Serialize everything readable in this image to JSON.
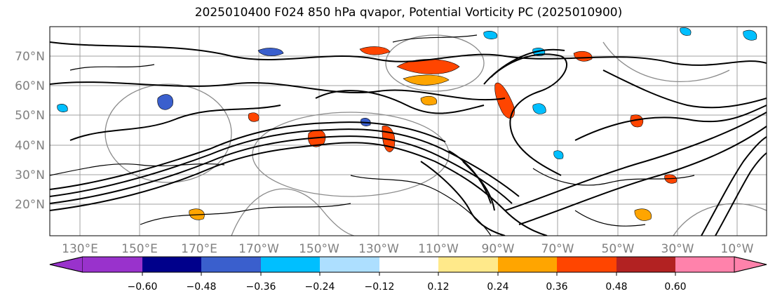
{
  "title": "2025010400 F024 850 hPa qvapor, Potential Vorticity PC (2025010900)",
  "lat_labels": [
    "70°N",
    "60°N",
    "50°N",
    "40°N",
    "30°N",
    "20°N"
  ],
  "lon_labels": [
    "130°E",
    "150°E",
    "170°E",
    "170°W",
    "150°W",
    "130°W",
    "110°W",
    "90°W",
    "70°W",
    "50°W",
    "30°W",
    "10°W"
  ],
  "colorbar": {
    "ticks": [
      "−0.60",
      "−0.48",
      "−0.36",
      "−0.24",
      "−0.12",
      "0.12",
      "0.24",
      "0.36",
      "0.48",
      "0.60"
    ],
    "colors": [
      "#9932cc",
      "#00008b",
      "#3a5fcd",
      "#00bfff",
      "#addfff",
      "#ffffff",
      "#ffe98a",
      "#ffa500",
      "#ff4500",
      "#b22222",
      "#ff82ab",
      "#ff82ab"
    ],
    "extend": "both"
  }
}
